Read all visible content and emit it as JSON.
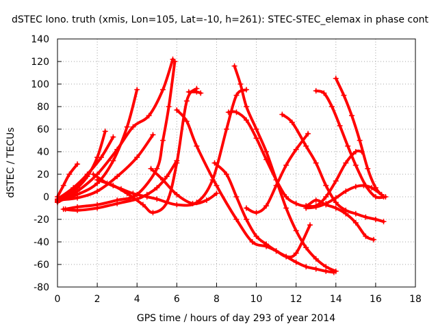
{
  "chart_data": {
    "type": "line",
    "title": "dSTEC Iono. truth (xmis, Lon=105, Lat=-10, h=261): STEC-STEC_elemax in phase cont",
    "xlabel": "GPS time / hours of day 293 of year 2014",
    "ylabel": "dSTEC  / TECUs",
    "xlim": [
      0,
      18
    ],
    "ylim": [
      -80,
      140
    ],
    "x_ticks": [
      0,
      2,
      4,
      6,
      8,
      10,
      12,
      14,
      16,
      18
    ],
    "y_ticks": [
      -80,
      -60,
      -40,
      -20,
      0,
      20,
      40,
      60,
      80,
      100,
      120,
      140
    ],
    "x_tick_labels": [
      "0",
      "2",
      "4",
      "6",
      "8",
      "10",
      "12",
      "14",
      "16",
      "18"
    ],
    "y_tick_labels": [
      "-80",
      "-60",
      "-40",
      "-20",
      "0",
      "20",
      "40",
      "60",
      "80",
      "100",
      "120",
      "140"
    ],
    "grid": true,
    "legend": "none",
    "color": "#ff0000",
    "series": [
      {
        "x": [
          0.0,
          0.3,
          0.6,
          1.0
        ],
        "y": [
          0,
          10,
          20,
          29
        ]
      },
      {
        "x": [
          0.0,
          0.5,
          1.0,
          1.5,
          2.0,
          2.4
        ],
        "y": [
          -3,
          2,
          8,
          18,
          35,
          58
        ]
      },
      {
        "x": [
          0.0,
          0.8,
          1.5,
          2.2,
          2.8
        ],
        "y": [
          -2,
          8,
          20,
          35,
          53
        ]
      },
      {
        "x": [
          0.0,
          1.0,
          2.0,
          2.8,
          3.5,
          4.0
        ],
        "y": [
          -4,
          2,
          12,
          32,
          62,
          95
        ]
      },
      {
        "x": [
          0.0,
          1.0,
          2.0,
          3.0,
          4.0,
          4.8
        ],
        "y": [
          -3,
          -1,
          5,
          18,
          35,
          55
        ]
      },
      {
        "x": [
          0.0,
          1.0,
          2.0,
          3.0,
          3.8,
          4.6,
          5.3,
          5.8
        ],
        "y": [
          -5,
          5,
          20,
          42,
          62,
          72,
          95,
          122
        ]
      },
      {
        "x": [
          0.3,
          1.0,
          2.0,
          3.0,
          4.0,
          4.5,
          5.0,
          5.5,
          6.0
        ],
        "y": [
          -11,
          -12,
          -10,
          -6,
          -2,
          2,
          8,
          18,
          32
        ]
      },
      {
        "x": [
          0.4,
          1.0,
          2.0,
          3.0,
          4.0,
          5.0,
          5.3,
          5.6,
          5.9
        ],
        "y": [
          -11,
          -9,
          -7,
          -3,
          2,
          25,
          50,
          80,
          120
        ]
      },
      {
        "x": [
          2.0,
          2.8,
          3.5,
          4.3,
          4.8,
          5.5,
          6.0,
          6.5,
          7.0
        ],
        "y": [
          15,
          10,
          3,
          -7,
          -14,
          -5,
          30,
          85,
          96
        ]
      },
      {
        "x": [
          1.8,
          2.5,
          3.2,
          3.8,
          4.5,
          5.0,
          6.0,
          7.0,
          7.8,
          8.5,
          9.0,
          9.5
        ],
        "y": [
          20,
          12,
          7,
          3,
          0,
          -2,
          -7,
          -5,
          15,
          60,
          90,
          95
        ]
      },
      {
        "x": [
          4.7,
          5.3,
          6.0,
          6.8,
          7.5,
          8.0
        ],
        "y": [
          25,
          15,
          2,
          -6,
          -3,
          3
        ]
      },
      {
        "x": [
          6.6,
          7.0,
          7.2
        ],
        "y": [
          93,
          93,
          92
        ]
      },
      {
        "x": [
          6.0,
          6.5,
          7.0,
          8.0,
          9.0,
          9.8,
          10.5,
          11.0,
          11.5,
          12.0,
          12.7
        ],
        "y": [
          77,
          67,
          45,
          10,
          -20,
          -40,
          -44,
          -48,
          -53,
          -50,
          -25
        ]
      },
      {
        "x": [
          7.9,
          8.5,
          9.0,
          9.5,
          10.0,
          10.5,
          11.0,
          11.5,
          12.0,
          12.5,
          13.0,
          13.5,
          13.9
        ],
        "y": [
          30,
          20,
          0,
          -20,
          -35,
          -42,
          -48,
          -53,
          -58,
          -62,
          -64,
          -66,
          -67
        ]
      },
      {
        "x": [
          8.6,
          9.0,
          9.5,
          10.0,
          10.5,
          11.0,
          11.5,
          12.0,
          12.5,
          13.0,
          13.5,
          14.0,
          14.5,
          15.0,
          15.5,
          15.9
        ],
        "y": [
          75,
          75,
          68,
          52,
          33,
          15,
          0,
          -6,
          -8,
          -3,
          -7,
          -10,
          -15,
          -23,
          -35,
          -38
        ]
      },
      {
        "x": [
          8.9,
          9.2,
          9.5,
          10.0,
          10.5,
          11.0,
          11.5,
          12.0,
          12.5,
          13.0,
          13.5,
          14.0
        ],
        "y": [
          116,
          100,
          80,
          60,
          40,
          15,
          -10,
          -30,
          -45,
          -55,
          -62,
          -66
        ]
      },
      {
        "x": [
          9.5,
          10.0,
          10.5,
          11.0,
          11.5,
          12.0,
          12.6
        ],
        "y": [
          -10,
          -14,
          -8,
          10,
          28,
          42,
          56
        ]
      },
      {
        "x": [
          11.3,
          11.8,
          12.5,
          13.0,
          13.5,
          14.0,
          14.5,
          15.0,
          15.5,
          16.0,
          16.4
        ],
        "y": [
          73,
          66,
          45,
          30,
          10,
          -5,
          -12,
          -15,
          -18,
          -20,
          -22
        ]
      },
      {
        "x": [
          13.0,
          13.4,
          13.8,
          14.2,
          14.6,
          15.0,
          15.5,
          16.0,
          16.5
        ],
        "y": [
          94,
          92,
          80,
          63,
          45,
          28,
          10,
          0,
          0
        ]
      },
      {
        "x": [
          12.5,
          13.0,
          13.5,
          14.0,
          14.5,
          15.0,
          15.3
        ],
        "y": [
          -8,
          -8,
          0,
          14,
          30,
          40,
          40
        ]
      },
      {
        "x": [
          12.5,
          13.0,
          13.5,
          14.0,
          14.5,
          15.0,
          15.4,
          15.8,
          16.3
        ],
        "y": [
          -10,
          -9,
          -6,
          -1,
          5,
          9,
          10,
          8,
          2
        ]
      },
      {
        "x": [
          14.0,
          14.4,
          14.8,
          15.2,
          15.6,
          16.0,
          16.4
        ],
        "y": [
          105,
          90,
          72,
          50,
          25,
          8,
          0
        ]
      }
    ]
  }
}
